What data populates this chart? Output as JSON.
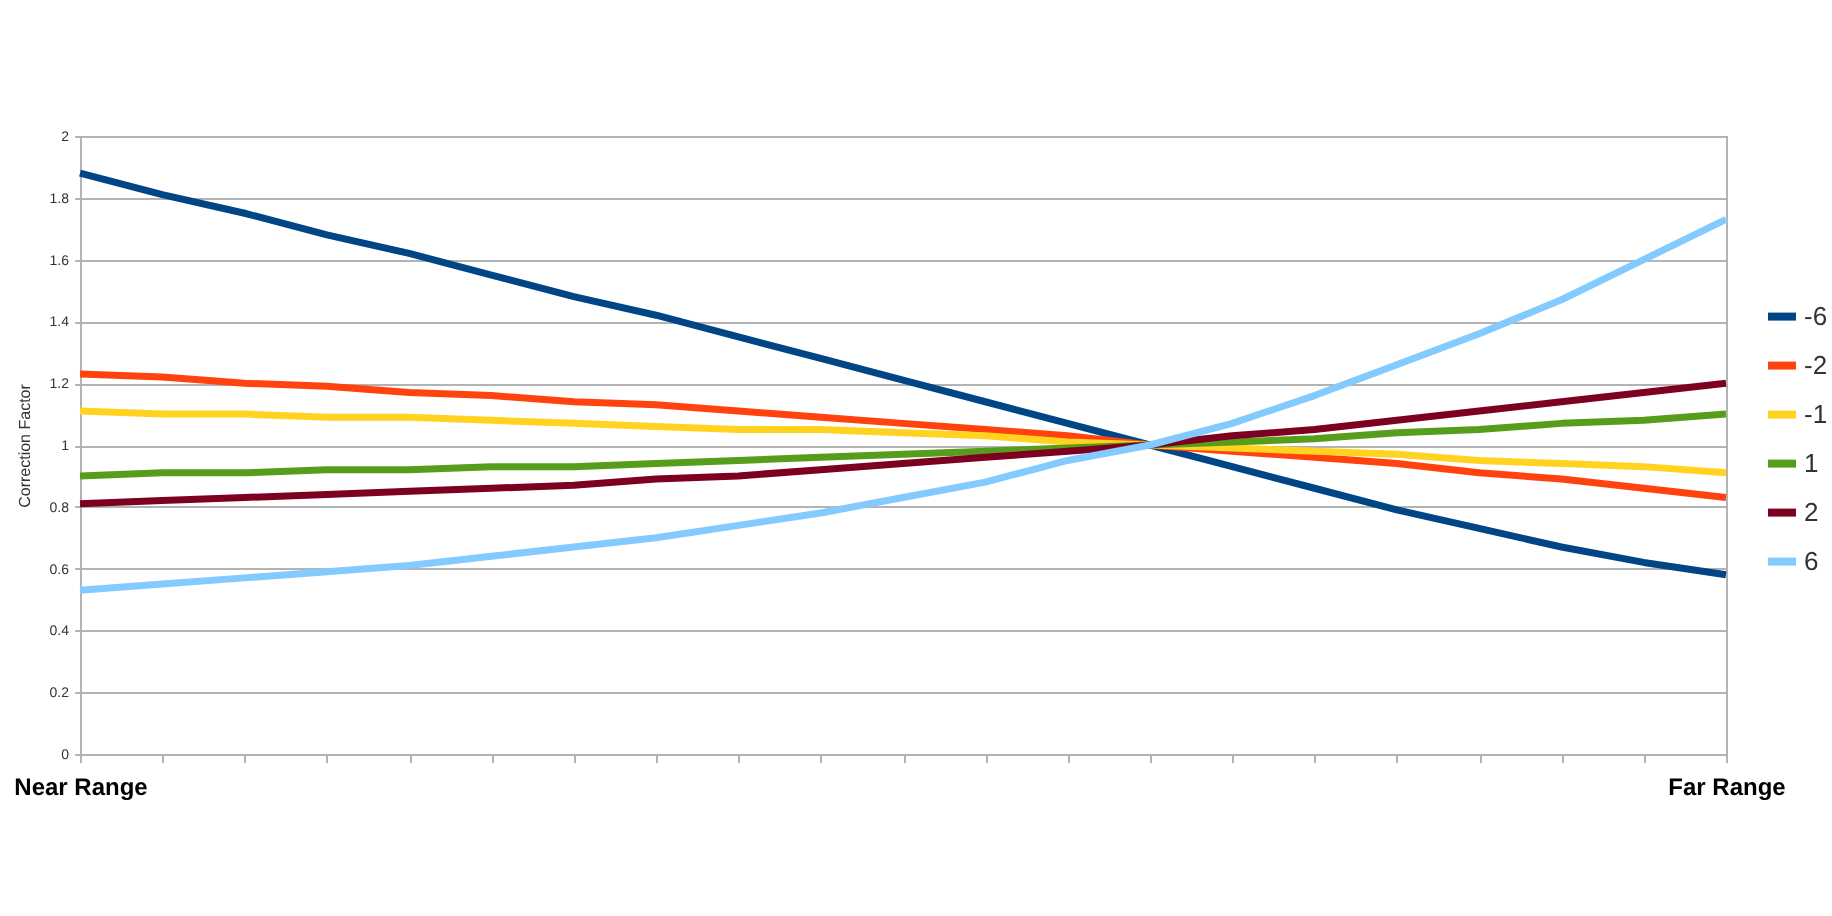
{
  "chart_data": {
    "type": "line",
    "ylabel": "Correction Factor",
    "categories": [
      "Near Range",
      null,
      null,
      null,
      null,
      null,
      null,
      null,
      null,
      null,
      null,
      null,
      null,
      null,
      null,
      null,
      null,
      null,
      null,
      null,
      "Far Range"
    ],
    "series": [
      {
        "name": "-6",
        "color": "#004586",
        "values": [
          1.88,
          1.81,
          1.75,
          1.68,
          1.62,
          1.55,
          1.48,
          1.42,
          1.35,
          1.28,
          1.21,
          1.14,
          1.07,
          1.0,
          0.93,
          0.86,
          0.79,
          0.73,
          0.67,
          0.62,
          0.58
        ]
      },
      {
        "name": "-2",
        "color": "#ff420e",
        "values": [
          1.23,
          1.22,
          1.2,
          1.19,
          1.17,
          1.16,
          1.14,
          1.13,
          1.11,
          1.09,
          1.07,
          1.05,
          1.03,
          1.0,
          0.98,
          0.96,
          0.94,
          0.91,
          0.89,
          0.86,
          0.83
        ]
      },
      {
        "name": "-1",
        "color": "#ffd320",
        "values": [
          1.11,
          1.1,
          1.1,
          1.09,
          1.09,
          1.08,
          1.07,
          1.06,
          1.05,
          1.05,
          1.04,
          1.03,
          1.01,
          1.0,
          0.99,
          0.98,
          0.97,
          0.95,
          0.94,
          0.93,
          0.91
        ]
      },
      {
        "name": "1",
        "color": "#579d1c",
        "values": [
          0.9,
          0.91,
          0.91,
          0.92,
          0.92,
          0.93,
          0.93,
          0.94,
          0.95,
          0.96,
          0.97,
          0.98,
          0.99,
          1.0,
          1.01,
          1.02,
          1.04,
          1.05,
          1.07,
          1.08,
          1.1
        ]
      },
      {
        "name": "2",
        "color": "#7e0021",
        "values": [
          0.81,
          0.82,
          0.83,
          0.84,
          0.85,
          0.86,
          0.87,
          0.89,
          0.9,
          0.92,
          0.94,
          0.96,
          0.98,
          1.0,
          1.03,
          1.05,
          1.08,
          1.11,
          1.14,
          1.17,
          1.2
        ]
      },
      {
        "name": "6",
        "color": "#83caff",
        "values": [
          0.53,
          0.55,
          0.57,
          0.59,
          0.61,
          0.64,
          0.67,
          0.7,
          0.74,
          0.78,
          0.83,
          0.88,
          0.95,
          1.0,
          1.07,
          1.16,
          1.26,
          1.36,
          1.47,
          1.6,
          1.73
        ]
      }
    ],
    "ylim": [
      0,
      2
    ],
    "yticks": [
      0,
      0.2,
      0.4,
      0.6,
      0.8,
      1,
      1.2,
      1.4,
      1.6,
      1.8,
      2
    ],
    "grid": "y",
    "legend": "right",
    "line_style": "solid"
  }
}
